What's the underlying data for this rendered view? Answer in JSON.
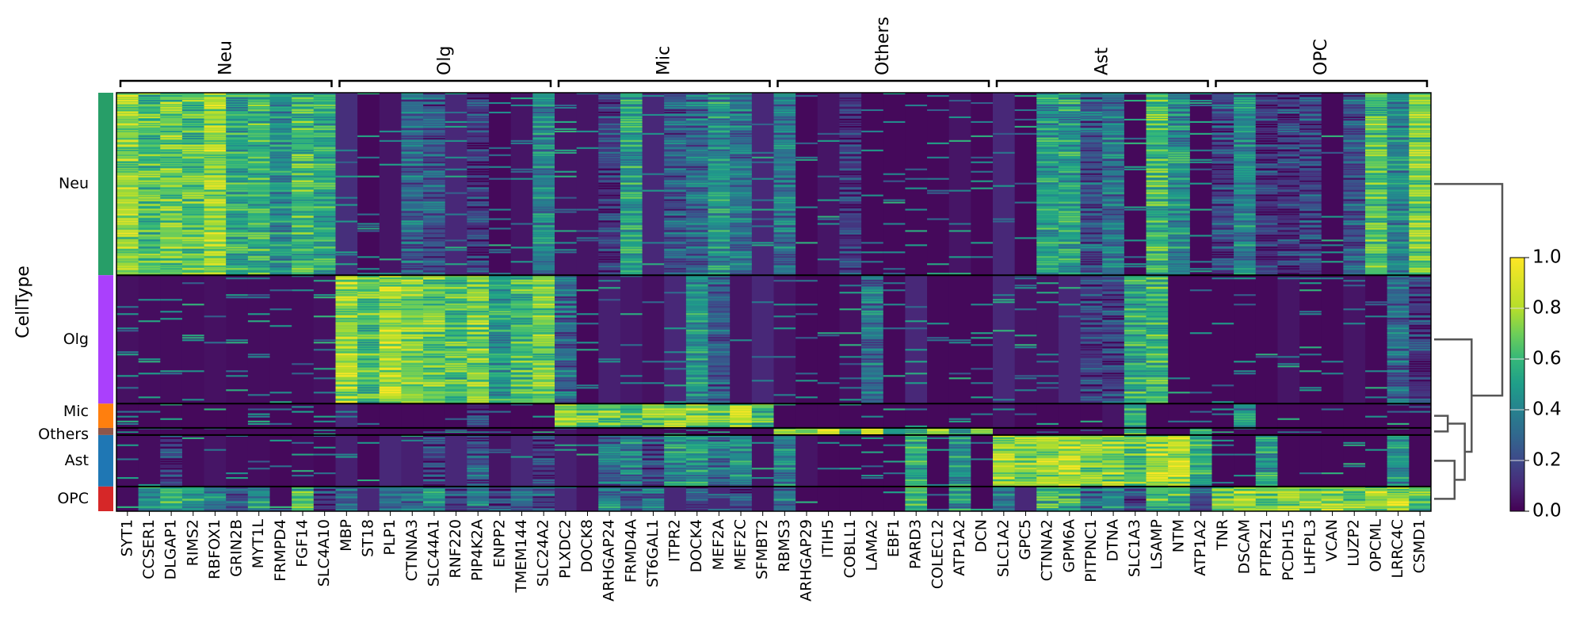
{
  "chart_data": {
    "type": "heatmap",
    "title": "",
    "ylabel": "CellType",
    "xlabel": "",
    "colormap": "viridis",
    "value_range": [
      0.0,
      1.0
    ],
    "colorbar": {
      "ticks": [
        "0.0",
        "0.2",
        "0.4",
        "0.6",
        "0.8",
        "1.0"
      ],
      "values": [
        0.0,
        0.2,
        0.4,
        0.6,
        0.8,
        1.0
      ],
      "placement": "right"
    },
    "cell_types": [
      {
        "name": "Neu",
        "color": "#279e68",
        "fraction": 0.436
      },
      {
        "name": "Olg",
        "color": "#aa40fc",
        "fraction": 0.307
      },
      {
        "name": "Mic",
        "color": "#ff7f0e",
        "fraction": 0.058
      },
      {
        "name": "Others",
        "color": "#8c564b",
        "fraction": 0.017
      },
      {
        "name": "Ast",
        "color": "#1f77b4",
        "fraction": 0.123
      },
      {
        "name": "OPC",
        "color": "#d62728",
        "fraction": 0.059
      }
    ],
    "gene_groups": [
      {
        "name": "Neu",
        "genes": [
          "SYT1",
          "CCSER1",
          "DLGAP1",
          "RIMS2",
          "RBFOX1",
          "GRIN2B",
          "MYT1L",
          "FRMPD4",
          "FGF14",
          "SLC4A10"
        ]
      },
      {
        "name": "Olg",
        "genes": [
          "MBP",
          "ST18",
          "PLP1",
          "CTNNA3",
          "SLC44A1",
          "RNF220",
          "PIP4K2A",
          "ENPP2",
          "TMEM144",
          "SLC24A2"
        ]
      },
      {
        "name": "Mic",
        "genes": [
          "PLXDC2",
          "DOCK8",
          "ARHGAP24",
          "FRMD4A",
          "ST6GAL1",
          "ITPR2",
          "DOCK4",
          "MEF2A",
          "MEF2C",
          "SFMBT2"
        ]
      },
      {
        "name": "Others",
        "genes": [
          "RBMS3",
          "ARHGAP29",
          "ITIH5",
          "COBLL1",
          "LAMA2",
          "EBF1",
          "PARD3",
          "COLEC12",
          "ATP1A2",
          "DCN"
        ]
      },
      {
        "name": "Ast",
        "genes": [
          "SLC1A2",
          "GPC5",
          "CTNNA2",
          "GPM6A",
          "PITPNC1",
          "DTNA",
          "SLC1A3",
          "LSAMP",
          "NTM",
          "ATP1A2"
        ]
      },
      {
        "name": "OPC",
        "genes": [
          "TNR",
          "DSCAM",
          "PTPRZ1",
          "PCDH15",
          "LHFPL3",
          "VCAN",
          "LUZP2",
          "OPCML",
          "LRRC4C",
          "CSMD1"
        ]
      }
    ],
    "mean_expression": {
      "Neu": [
        0.75,
        0.62,
        0.7,
        0.65,
        0.78,
        0.55,
        0.58,
        0.45,
        0.62,
        0.55,
        0.12,
        0.02,
        0.05,
        0.3,
        0.25,
        0.1,
        0.15,
        0.02,
        0.05,
        0.4,
        0.05,
        0.05,
        0.15,
        0.5,
        0.1,
        0.25,
        0.3,
        0.45,
        0.35,
        0.1,
        0.35,
        0.02,
        0.05,
        0.15,
        0.02,
        0.02,
        0.02,
        0.02,
        0.05,
        0.02,
        0.1,
        0.02,
        0.5,
        0.5,
        0.25,
        0.35,
        0.02,
        0.6,
        0.45,
        0.02,
        0.2,
        0.4,
        0.15,
        0.15,
        0.2,
        0.02,
        0.25,
        0.65,
        0.4,
        0.7
      ],
      "Olg": [
        0.04,
        0.03,
        0.03,
        0.03,
        0.04,
        0.03,
        0.03,
        0.03,
        0.03,
        0.04,
        0.78,
        0.65,
        0.8,
        0.72,
        0.7,
        0.62,
        0.72,
        0.5,
        0.62,
        0.7,
        0.3,
        0.02,
        0.08,
        0.06,
        0.04,
        0.1,
        0.45,
        0.25,
        0.05,
        0.1,
        0.05,
        0.02,
        0.02,
        0.04,
        0.35,
        0.02,
        0.1,
        0.02,
        0.02,
        0.02,
        0.1,
        0.05,
        0.05,
        0.1,
        0.15,
        0.2,
        0.55,
        0.6,
        0.02,
        0.02,
        0.02,
        0.02,
        0.02,
        0.05,
        0.02,
        0.02,
        0.05,
        0.02,
        0.3,
        0.15
      ],
      "Mic": [
        0.02,
        0.02,
        0.02,
        0.02,
        0.02,
        0.02,
        0.02,
        0.02,
        0.02,
        0.02,
        0.1,
        0.02,
        0.02,
        0.02,
        0.02,
        0.02,
        0.15,
        0.02,
        0.02,
        0.02,
        0.78,
        0.68,
        0.7,
        0.6,
        0.7,
        0.72,
        0.75,
        0.62,
        0.8,
        0.62,
        0.02,
        0.02,
        0.02,
        0.02,
        0.02,
        0.02,
        0.02,
        0.02,
        0.02,
        0.02,
        0.05,
        0.02,
        0.02,
        0.02,
        0.02,
        0.05,
        0.55,
        0.02,
        0.02,
        0.02,
        0.02,
        0.45,
        0.02,
        0.02,
        0.02,
        0.02,
        0.02,
        0.02,
        0.02,
        0.02
      ],
      "Others": [
        0.02,
        0.02,
        0.02,
        0.02,
        0.02,
        0.02,
        0.02,
        0.02,
        0.02,
        0.02,
        0.02,
        0.02,
        0.02,
        0.02,
        0.02,
        0.02,
        0.02,
        0.02,
        0.02,
        0.02,
        0.05,
        0.02,
        0.02,
        0.02,
        0.02,
        0.02,
        0.02,
        0.02,
        0.02,
        0.02,
        0.75,
        0.7,
        0.95,
        0.6,
        0.95,
        0.5,
        0.65,
        0.75,
        0.55,
        0.75,
        0.02,
        0.02,
        0.02,
        0.02,
        0.02,
        0.02,
        0.6,
        0.02,
        0.02,
        0.55,
        0.02,
        0.02,
        0.02,
        0.02,
        0.02,
        0.02,
        0.02,
        0.02,
        0.02,
        0.02
      ],
      "Ast": [
        0.03,
        0.03,
        0.15,
        0.03,
        0.05,
        0.03,
        0.03,
        0.02,
        0.03,
        0.02,
        0.08,
        0.02,
        0.1,
        0.08,
        0.15,
        0.1,
        0.25,
        0.05,
        0.1,
        0.15,
        0.08,
        0.05,
        0.3,
        0.4,
        0.2,
        0.45,
        0.5,
        0.35,
        0.45,
        0.05,
        0.4,
        0.05,
        0.02,
        0.02,
        0.02,
        0.02,
        0.55,
        0.02,
        0.45,
        0.02,
        0.78,
        0.72,
        0.78,
        0.8,
        0.72,
        0.75,
        0.65,
        0.82,
        0.82,
        0.55,
        0.02,
        0.02,
        0.5,
        0.02,
        0.02,
        0.02,
        0.02,
        0.02,
        0.45,
        0.02
      ],
      "OPC": [
        0.03,
        0.45,
        0.55,
        0.5,
        0.4,
        0.25,
        0.45,
        0.03,
        0.62,
        0.2,
        0.25,
        0.1,
        0.3,
        0.35,
        0.45,
        0.2,
        0.35,
        0.15,
        0.3,
        0.25,
        0.1,
        0.05,
        0.4,
        0.25,
        0.3,
        0.1,
        0.2,
        0.1,
        0.2,
        0.05,
        0.35,
        0.02,
        0.02,
        0.02,
        0.02,
        0.02,
        0.55,
        0.02,
        0.45,
        0.02,
        0.35,
        0.1,
        0.55,
        0.55,
        0.3,
        0.4,
        0.2,
        0.65,
        0.6,
        0.2,
        0.72,
        0.78,
        0.7,
        0.75,
        0.7,
        0.72,
        0.68,
        0.78,
        0.82,
        0.62
      ]
    },
    "dendrogram": {
      "leaf_order": [
        "Neu",
        "Olg",
        "Mic",
        "Others",
        "Ast",
        "OPC"
      ],
      "merges": [
        {
          "left": "Mic",
          "right": "Others",
          "height": 0.2
        },
        {
          "left": "Ast",
          "right": "OPC",
          "height": 0.3
        },
        {
          "left": "Mic+Others",
          "right": "Ast+OPC",
          "height": 0.45
        },
        {
          "left": "Olg",
          "right": "Mic+Others+Ast+OPC",
          "height": 0.55
        },
        {
          "left": "Neu",
          "right": "Olg+Mic+Others+Ast+OPC",
          "height": 1.0
        }
      ]
    }
  }
}
